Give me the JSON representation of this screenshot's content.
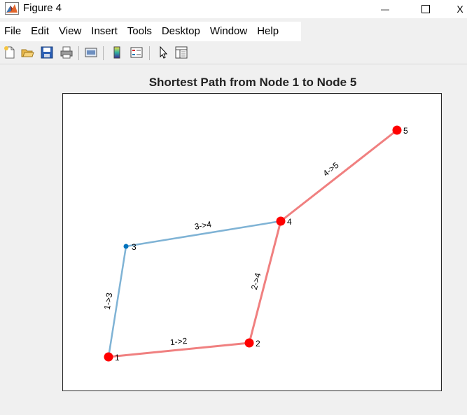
{
  "window": {
    "title": "Figure 4",
    "minimize_glyph": "—",
    "maximize_glyph": "☐",
    "close_glyph": "X"
  },
  "menu": {
    "items": [
      "File",
      "Edit",
      "View",
      "Insert",
      "Tools",
      "Desktop",
      "Window",
      "Help"
    ]
  },
  "toolbar": {
    "icons": [
      "new-figure-icon",
      "open-file-icon",
      "save-icon",
      "print-icon",
      "link-plot-icon",
      "colorbar-icon",
      "legend-icon",
      "edit-plot-arrow-icon",
      "property-inspector-icon"
    ]
  },
  "plot": {
    "title": "Shortest Path from Node 1 to Node 5",
    "colors": {
      "path_edge": "#f08080",
      "other_edge": "#7fb3d5",
      "path_node": "#ff0000",
      "other_node": "#0072bd"
    }
  },
  "chart_data": {
    "type": "graph",
    "title": "Shortest Path from Node 1 to Node 5",
    "nodes": [
      {
        "id": "1",
        "label": "1",
        "on_path": true
      },
      {
        "id": "2",
        "label": "2",
        "on_path": true
      },
      {
        "id": "3",
        "label": "3",
        "on_path": false
      },
      {
        "id": "4",
        "label": "4",
        "on_path": true
      },
      {
        "id": "5",
        "label": "5",
        "on_path": true
      }
    ],
    "edges": [
      {
        "from": "1",
        "to": "2",
        "label": "1->2",
        "on_path": true
      },
      {
        "from": "1",
        "to": "3",
        "label": "1->3",
        "on_path": false
      },
      {
        "from": "2",
        "to": "4",
        "label": "2->4",
        "on_path": true
      },
      {
        "from": "3",
        "to": "4",
        "label": "3->4",
        "on_path": false
      },
      {
        "from": "4",
        "to": "5",
        "label": "4->5",
        "on_path": true
      }
    ]
  }
}
